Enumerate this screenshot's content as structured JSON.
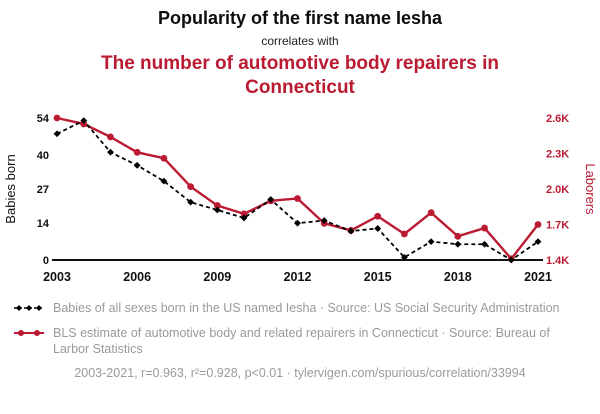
{
  "header": {
    "title": "Popularity of the first name Iesha",
    "connector": "correlates with",
    "subtitle": "The number of automotive body repairers in Connecticut"
  },
  "colors": {
    "accent_red": "#ba1b32",
    "series_black": "#000000",
    "muted_gray": "#9a9a9a"
  },
  "chart_data": {
    "type": "line",
    "x": [
      2003,
      2004,
      2005,
      2006,
      2007,
      2008,
      2009,
      2010,
      2011,
      2012,
      2013,
      2014,
      2015,
      2016,
      2017,
      2018,
      2019,
      2020,
      2021
    ],
    "x_ticks": [
      2003,
      2006,
      2009,
      2012,
      2015,
      2018,
      2021
    ],
    "left_axis": {
      "label": "Babies born",
      "ticks": [
        0,
        14,
        27,
        40,
        54
      ],
      "range": [
        0,
        54
      ]
    },
    "right_axis": {
      "label": "Laborers",
      "ticks": [
        "1.4K",
        "1.7K",
        "2.0K",
        "2.3K",
        "2.6K"
      ],
      "tick_values": [
        1400,
        1700,
        2000,
        2300,
        2600
      ],
      "range": [
        1400,
        2600
      ]
    },
    "series": [
      {
        "name": "Babies of all sexes born in the US named Iesha",
        "axis": "left",
        "color": "#000000",
        "style": "dashed-diamond",
        "values": [
          48,
          53,
          41,
          36,
          30,
          22,
          19,
          16,
          23,
          14,
          15,
          11,
          12,
          1,
          7,
          6,
          6,
          0,
          7
        ]
      },
      {
        "name": "BLS estimate of automotive body and related repairers in Connecticut",
        "axis": "right",
        "color": "#ba1b32",
        "style": "solid-circle",
        "values": [
          2600,
          2550,
          2440,
          2310,
          2260,
          2020,
          1860,
          1790,
          1900,
          1920,
          1710,
          1650,
          1770,
          1620,
          1800,
          1600,
          1670,
          1410,
          1700
        ]
      }
    ],
    "grid": false,
    "legend_position": "below"
  },
  "legend": [
    {
      "series": "babies",
      "label": "Babies of all sexes born in the US named Iesha · Source: US Social Security Administration"
    },
    {
      "series": "laborers",
      "label": "BLS estimate of automotive body and related repairers in Connecticut · Source: Bureau of Larbor Statistics"
    }
  ],
  "footer": {
    "stats": "2003-2021, r=0.963, r²=0.928, p<0.01 · tylervigen.com/spurious/correlation/33994"
  }
}
